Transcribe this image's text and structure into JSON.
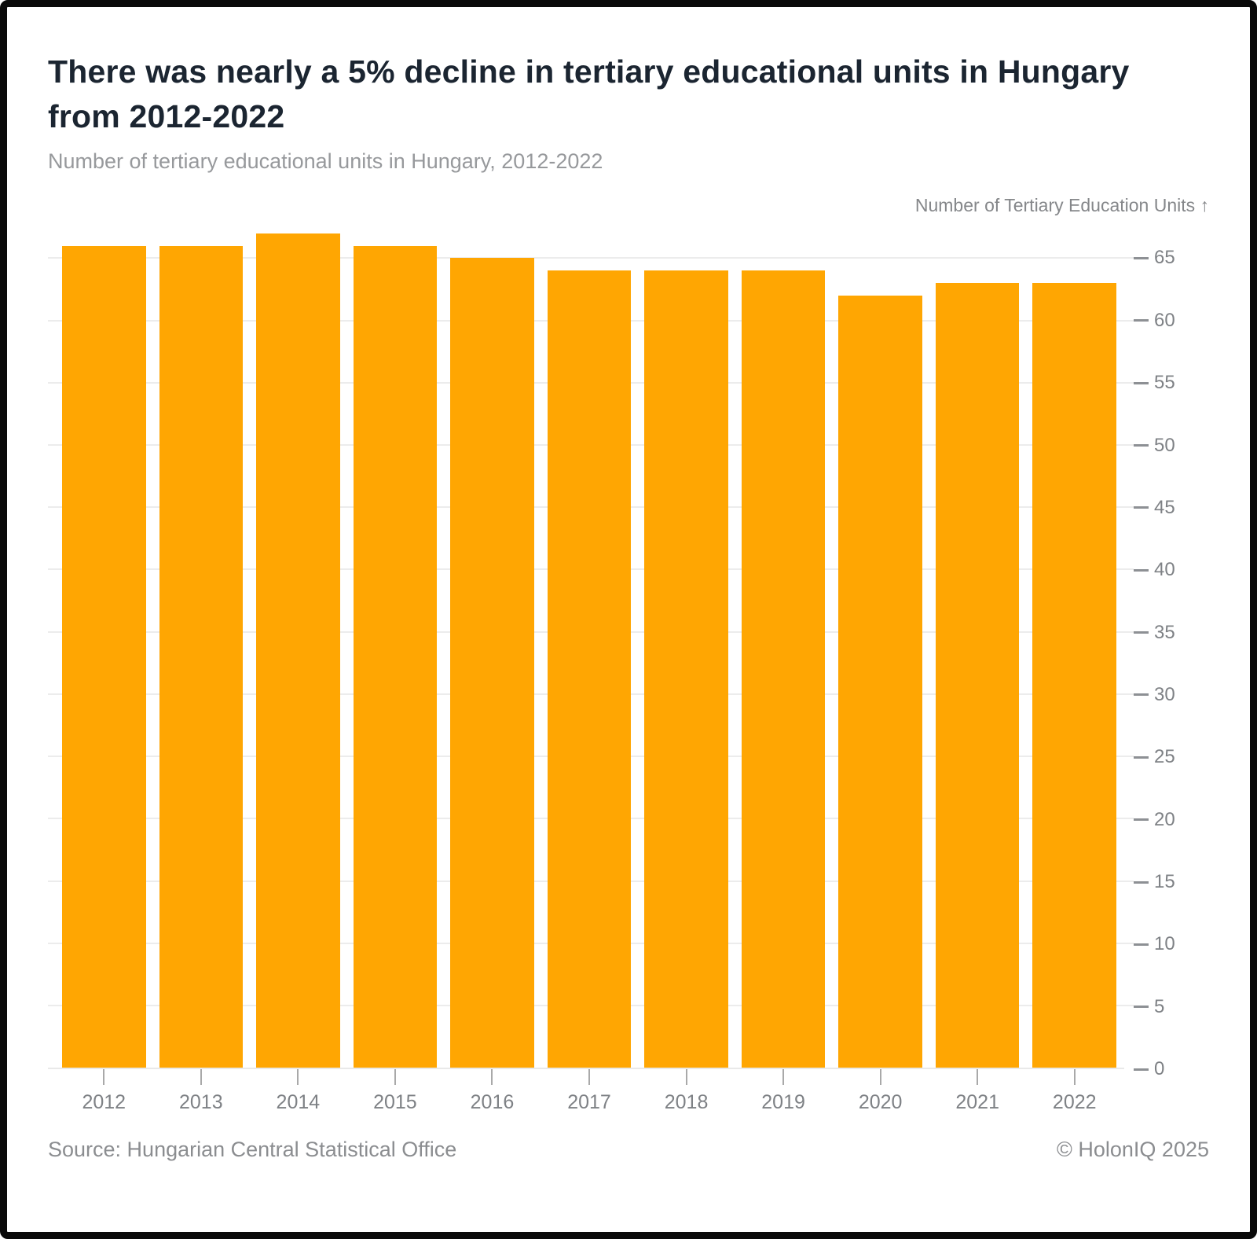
{
  "header": {
    "title": "There was nearly a 5% decline in tertiary educational units in Hungary from 2012-2022",
    "subtitle": "Number of tertiary educational units in Hungary, 2012-2022"
  },
  "chart_data": {
    "type": "bar",
    "title": "Number of tertiary educational units in Hungary, 2012-2022",
    "categories": [
      "2012",
      "2013",
      "2014",
      "2015",
      "2016",
      "2017",
      "2018",
      "2019",
      "2020",
      "2021",
      "2022"
    ],
    "values": [
      66,
      66,
      67,
      66,
      65,
      64,
      64,
      64,
      62,
      63,
      63
    ],
    "xlabel": "",
    "ylabel": "Number of Tertiary Education Units ↑",
    "ylim": [
      0,
      67.6
    ],
    "yticks": [
      0,
      5,
      10,
      15,
      20,
      25,
      30,
      35,
      40,
      45,
      50,
      55,
      60,
      65
    ],
    "grid": true,
    "axis_side": "right",
    "legend_position": "none",
    "bar_color": "#FFA602",
    "gridline_color": "#ececec"
  },
  "footer": {
    "source": "Source: Hungarian Central Statistical Office",
    "copyright": "© HolonIQ 2025"
  },
  "colors": {
    "title_text": "#1b2531",
    "subtitle_text": "#97999c",
    "axis_text": "#7e8185",
    "footer_text": "#8b8d90",
    "frame_border": "#0a0a0a",
    "background": "#ffffff"
  }
}
